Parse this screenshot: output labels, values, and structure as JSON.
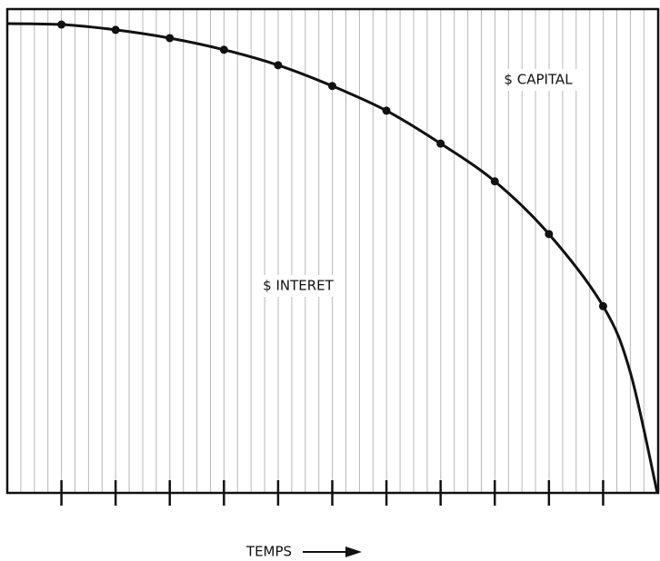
{
  "chart_data": {
    "type": "line",
    "xlabel": "TEMPS",
    "annotations": [
      "$ CAPITAL",
      "$ INTERET"
    ],
    "x": [
      0,
      1,
      2,
      3,
      4,
      5,
      6,
      7,
      8,
      9,
      10,
      11,
      11.5,
      12
    ],
    "series": [
      {
        "color": "#111111",
        "values": [
          97.0,
          96.8,
          95.7,
          94.0,
          91.6,
          88.4,
          84.1,
          79.0,
          72.2,
          64.4,
          53.5,
          38.6,
          25.0,
          0
        ]
      }
    ],
    "xlim": [
      0,
      12
    ],
    "xticks": [
      1,
      2,
      3,
      4,
      5,
      6,
      7,
      8,
      9,
      10,
      11
    ],
    "ylim": [
      0,
      100
    ]
  }
}
